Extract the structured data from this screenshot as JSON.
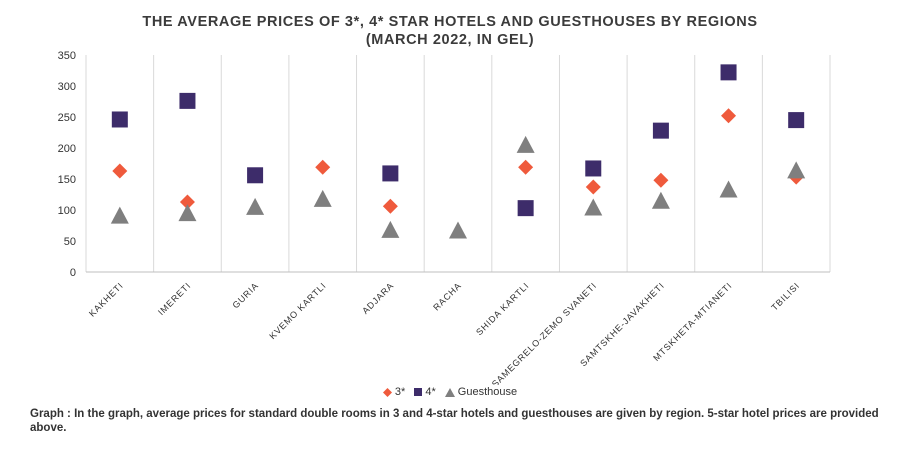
{
  "title_line1": "THE AVERAGE PRICES OF 3*, 4* STAR HOTELS AND GUESTHOUSES BY REGIONS",
  "title_line2": "(MARCH 2022, IN GEL)",
  "caption": "Graph : In the graph, average prices for standard double rooms in 3 and 4-star hotels and guesthouses are given by region. 5-star hotel prices are provided above.",
  "chart_data": {
    "type": "scatter",
    "categories": [
      "KAKHETI",
      "IMERETI",
      "GURIA",
      "KVEMO KARTLI",
      "ADJARA",
      "RACHA",
      "SHIDA KARTLI",
      "SAMEGRELO-ZEMO SVANETI",
      "SAMTSKHE-JAVAKHETI",
      "MTSKHETA-MTIANETI",
      "TBILISI"
    ],
    "ylim": [
      0,
      350
    ],
    "yticks": [
      "0",
      "50",
      "100",
      "150",
      "200",
      "250",
      "300",
      "350"
    ],
    "grid": "vertical category separators",
    "legend_position": "bottom",
    "series": [
      {
        "name": "3*",
        "marker": "diamond",
        "color": "#ef5a3c",
        "values": [
          163,
          113,
          null,
          169,
          106,
          null,
          169,
          137,
          148,
          252,
          153
        ]
      },
      {
        "name": "4*",
        "marker": "square",
        "color": "#3d2c6a",
        "values": [
          246,
          276,
          156,
          null,
          159,
          null,
          103,
          167,
          228,
          322,
          245
        ]
      },
      {
        "name": "Guesthouse",
        "marker": "triangle",
        "color": "#7f7f7f",
        "values": [
          91,
          95,
          105,
          118,
          68,
          67,
          205,
          104,
          115,
          133,
          164
        ]
      }
    ]
  }
}
